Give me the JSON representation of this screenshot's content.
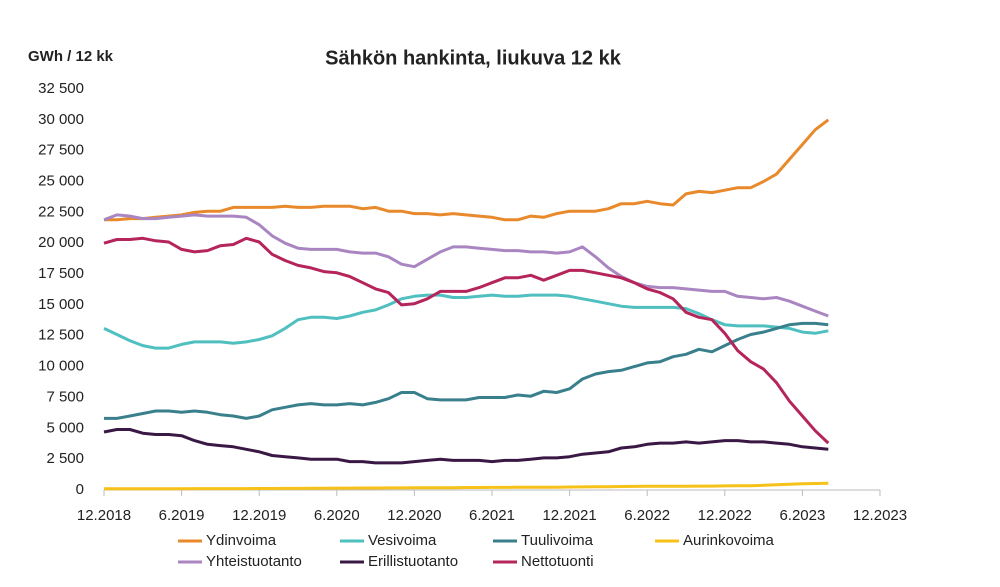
{
  "chart_data": {
    "type": "line",
    "title": "Sähkön hankinta, liukuva 12 kk",
    "y_label": "GWh / 12 kk",
    "x": [
      "12.2018",
      "1.2019",
      "2.2019",
      "3.2019",
      "4.2019",
      "5.2019",
      "6.2019",
      "7.2019",
      "8.2019",
      "9.2019",
      "10.2019",
      "11.2019",
      "12.2019",
      "1.2020",
      "2.2020",
      "3.2020",
      "4.2020",
      "5.2020",
      "6.2020",
      "7.2020",
      "8.2020",
      "9.2020",
      "10.2020",
      "11.2020",
      "12.2020",
      "1.2021",
      "2.2021",
      "3.2021",
      "4.2021",
      "5.2021",
      "6.2021",
      "7.2021",
      "8.2021",
      "9.2021",
      "10.2021",
      "11.2021",
      "12.2021",
      "1.2022",
      "2.2022",
      "3.2022",
      "4.2022",
      "5.2022",
      "6.2022",
      "7.2022",
      "8.2022",
      "9.2022",
      "10.2022",
      "11.2022",
      "12.2022",
      "1.2023",
      "2.2023",
      "3.2023",
      "4.2023",
      "5.2023",
      "6.2023",
      "7.2023",
      "8.2023"
    ],
    "xlim": [
      "12.2018",
      "12.2023"
    ],
    "xticks": [
      "12.2018",
      "6.2019",
      "12.2019",
      "6.2020",
      "12.2020",
      "6.2021",
      "12.2021",
      "6.2022",
      "12.2022",
      "6.2023",
      "12.2023"
    ],
    "ylim": [
      0,
      32500
    ],
    "yticks": [
      {
        "value": 0,
        "label": "0"
      },
      {
        "value": 2500,
        "label": "2 500"
      },
      {
        "value": 5000,
        "label": "5 000"
      },
      {
        "value": 7500,
        "label": "7 500"
      },
      {
        "value": 10000,
        "label": "10 000"
      },
      {
        "value": 12500,
        "label": "12 500"
      },
      {
        "value": 15000,
        "label": "15 000"
      },
      {
        "value": 17500,
        "label": "17 500"
      },
      {
        "value": 20000,
        "label": "20 000"
      },
      {
        "value": 22500,
        "label": "22 500"
      },
      {
        "value": 25000,
        "label": "25 000"
      },
      {
        "value": 27500,
        "label": "27 500"
      },
      {
        "value": 30000,
        "label": "30 000"
      },
      {
        "value": 32500,
        "label": "32 500"
      }
    ],
    "grid": false,
    "series": [
      {
        "name": "Ydinvoima",
        "color": "#e8892b",
        "values": [
          21900,
          21900,
          22000,
          22000,
          22100,
          22200,
          22300,
          22500,
          22600,
          22600,
          22900,
          22900,
          22900,
          22900,
          23000,
          22900,
          22900,
          23000,
          23000,
          23000,
          22800,
          22900,
          22600,
          22600,
          22400,
          22400,
          22300,
          22400,
          22300,
          22200,
          22100,
          21900,
          21900,
          22200,
          22100,
          22400,
          22600,
          22600,
          22600,
          22800,
          23200,
          23200,
          23400,
          23200,
          23100,
          24000,
          24200,
          24100,
          24300,
          24500,
          24500,
          25000,
          25600,
          26800,
          28000,
          29200,
          30000
        ]
      },
      {
        "name": "Vesivoima",
        "color": "#4fbfc0",
        "values": [
          13100,
          12600,
          12100,
          11700,
          11500,
          11500,
          11800,
          12000,
          12000,
          12000,
          11900,
          12000,
          12200,
          12500,
          13100,
          13800,
          14000,
          14000,
          13900,
          14100,
          14400,
          14600,
          15000,
          15500,
          15700,
          15800,
          15800,
          15600,
          15600,
          15700,
          15800,
          15700,
          15700,
          15800,
          15800,
          15800,
          15700,
          15500,
          15300,
          15100,
          14900,
          14800,
          14800,
          14800,
          14800,
          14700,
          14300,
          13800,
          13400,
          13300,
          13300,
          13300,
          13200,
          13100,
          12800,
          12700,
          12900
        ]
      },
      {
        "name": "Tuulivoima",
        "color": "#3a7f8c",
        "values": [
          5800,
          5800,
          6000,
          6200,
          6400,
          6400,
          6300,
          6400,
          6300,
          6100,
          6000,
          5800,
          6000,
          6500,
          6700,
          6900,
          7000,
          6900,
          6900,
          7000,
          6900,
          7100,
          7400,
          7900,
          7900,
          7400,
          7300,
          7300,
          7300,
          7500,
          7500,
          7500,
          7700,
          7600,
          8000,
          7900,
          8200,
          9000,
          9400,
          9600,
          9700,
          10000,
          10300,
          10400,
          10800,
          11000,
          11400,
          11200,
          11700,
          12200,
          12600,
          12800,
          13100,
          13400,
          13500,
          13500,
          13400
        ]
      },
      {
        "name": "Aurinkovoima",
        "color": "#f6c21a",
        "values": [
          100,
          100,
          100,
          100,
          100,
          100,
          100,
          110,
          110,
          110,
          110,
          110,
          120,
          120,
          130,
          130,
          140,
          140,
          150,
          150,
          160,
          160,
          170,
          170,
          180,
          180,
          190,
          190,
          200,
          200,
          210,
          210,
          220,
          220,
          230,
          230,
          240,
          250,
          260,
          270,
          280,
          290,
          300,
          300,
          310,
          310,
          320,
          320,
          330,
          340,
          350,
          380,
          420,
          460,
          500,
          530,
          550
        ]
      },
      {
        "name": "Yhteistuotanto",
        "color": "#a986c1",
        "values": [
          21900,
          22300,
          22200,
          22000,
          22000,
          22100,
          22200,
          22300,
          22200,
          22200,
          22200,
          22100,
          21500,
          20600,
          20000,
          19600,
          19500,
          19500,
          19500,
          19300,
          19200,
          19200,
          18900,
          18300,
          18100,
          18700,
          19300,
          19700,
          19700,
          19600,
          19500,
          19400,
          19400,
          19300,
          19300,
          19200,
          19300,
          19700,
          18900,
          18000,
          17300,
          16800,
          16500,
          16400,
          16400,
          16300,
          16200,
          16100,
          16100,
          15700,
          15600,
          15500,
          15600,
          15300,
          14900,
          14500,
          14100
        ]
      },
      {
        "name": "Erillistuotanto",
        "color": "#3a1845",
        "values": [
          4700,
          4900,
          4900,
          4600,
          4500,
          4500,
          4400,
          4000,
          3700,
          3600,
          3500,
          3300,
          3100,
          2800,
          2700,
          2600,
          2500,
          2500,
          2500,
          2300,
          2300,
          2200,
          2200,
          2200,
          2300,
          2400,
          2500,
          2400,
          2400,
          2400,
          2300,
          2400,
          2400,
          2500,
          2600,
          2600,
          2700,
          2900,
          3000,
          3100,
          3400,
          3500,
          3700,
          3800,
          3800,
          3900,
          3800,
          3900,
          4000,
          4000,
          3900,
          3900,
          3800,
          3700,
          3500,
          3400,
          3300
        ]
      },
      {
        "name": "Nettotuonti",
        "color": "#b5245b",
        "values": [
          20000,
          20300,
          20300,
          20400,
          20200,
          20100,
          19500,
          19300,
          19400,
          19800,
          19900,
          20400,
          20100,
          19100,
          18600,
          18200,
          18000,
          17700,
          17600,
          17300,
          16800,
          16300,
          16000,
          15000,
          15100,
          15500,
          16100,
          16100,
          16100,
          16400,
          16800,
          17200,
          17200,
          17400,
          17000,
          17400,
          17800,
          17800,
          17600,
          17400,
          17200,
          16800,
          16300,
          16000,
          15500,
          14400,
          14000,
          13800,
          12700,
          11300,
          10400,
          9800,
          8700,
          7200,
          6000,
          4800,
          3800
        ]
      }
    ]
  }
}
